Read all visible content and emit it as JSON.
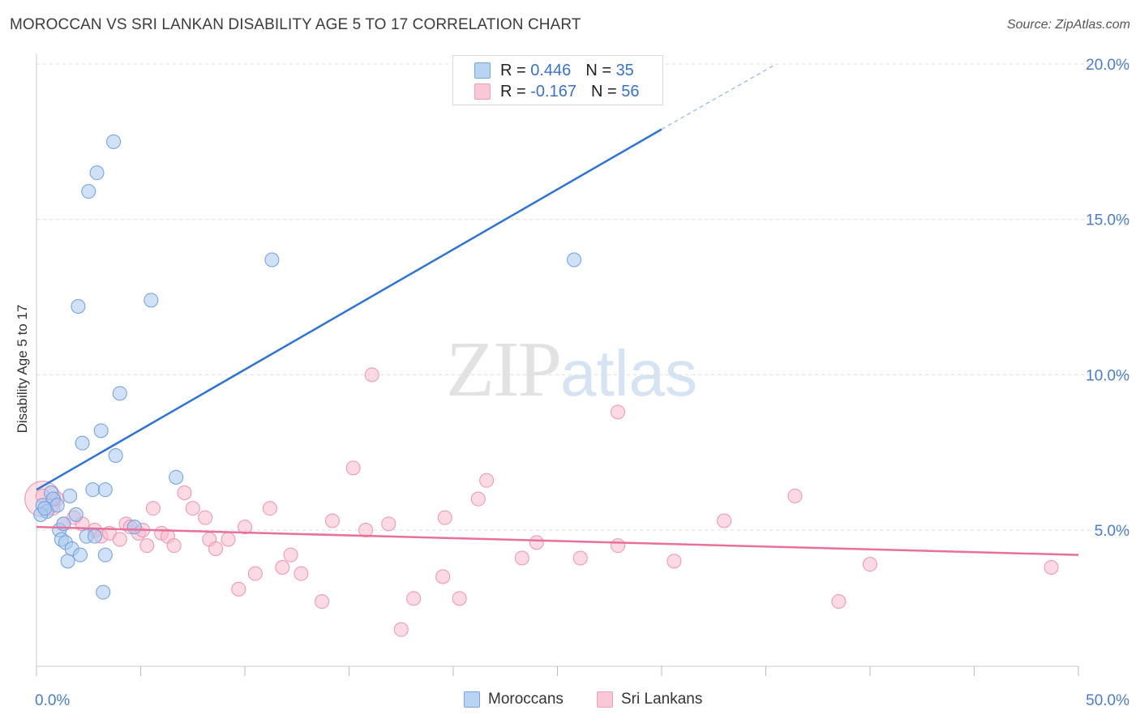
{
  "header": {
    "title": "MOROCCAN VS SRI LANKAN DISABILITY AGE 5 TO 17 CORRELATION CHART",
    "source": "Source: ZipAtlas.com"
  },
  "watermark": {
    "zip": "ZIP",
    "atlas": "atlas"
  },
  "legend": {
    "moroccans": {
      "r_label": "R =",
      "r_value": "0.446",
      "n_label": "N =",
      "n_value": "35"
    },
    "srilankans": {
      "r_label": "R =",
      "r_value": "-0.167",
      "n_label": "N =",
      "n_value": "56"
    }
  },
  "bottom_legend": {
    "moroccans": "Moroccans",
    "srilankans": "Sri Lankans"
  },
  "colors": {
    "moroccan_fill": "#a9c8f0",
    "moroccan_stroke": "#6f9fdc",
    "moroccan_line": "#2f74d0",
    "srilankan_fill": "#f7bccd",
    "srilankan_stroke": "#ec94b0",
    "srilankan_line": "#e8709a",
    "tick_label": "#4a7ec9",
    "grid": "#dddddd"
  },
  "chart_data": {
    "type": "scatter",
    "title": "MOROCCAN VS SRI LANKAN DISABILITY AGE 5 TO 17 CORRELATION CHART",
    "xlabel": "",
    "ylabel": "Disability Age 5 to 17",
    "xlim": [
      0,
      50
    ],
    "ylim": [
      0,
      21
    ],
    "x_tick_labels": [
      "0.0%",
      "50.0%"
    ],
    "y_ticks": [
      5,
      10,
      15,
      20
    ],
    "y_tick_labels": [
      "5.0%",
      "10.0%",
      "15.0%",
      "20.0%"
    ],
    "grid": true,
    "legend_position": "top-center",
    "series": [
      {
        "name": "Moroccans",
        "r": 0.446,
        "n": 35,
        "trend": {
          "x_start": 0,
          "y_start": 6.3,
          "x_end": 30,
          "y_end": 17.9,
          "dashed_to_x": 35.5,
          "dashed_to_y": 20.0
        },
        "points": [
          [
            0.3,
            5.8
          ],
          [
            0.5,
            5.6
          ],
          [
            0.7,
            6.2
          ],
          [
            0.8,
            6.0
          ],
          [
            1.0,
            5.8
          ],
          [
            1.1,
            5.0
          ],
          [
            1.2,
            4.7
          ],
          [
            1.3,
            5.2
          ],
          [
            1.4,
            4.6
          ],
          [
            1.5,
            4.0
          ],
          [
            1.6,
            6.1
          ],
          [
            1.7,
            4.4
          ],
          [
            1.9,
            5.5
          ],
          [
            2.0,
            12.2
          ],
          [
            2.1,
            4.2
          ],
          [
            2.2,
            7.8
          ],
          [
            2.4,
            4.8
          ],
          [
            2.5,
            15.9
          ],
          [
            2.7,
            6.3
          ],
          [
            2.8,
            4.8
          ],
          [
            2.9,
            16.5
          ],
          [
            3.1,
            8.2
          ],
          [
            3.2,
            3.0
          ],
          [
            3.3,
            4.2
          ],
          [
            3.3,
            6.3
          ],
          [
            3.7,
            17.5
          ],
          [
            3.8,
            7.4
          ],
          [
            4.0,
            9.4
          ],
          [
            4.7,
            5.1
          ],
          [
            5.5,
            12.4
          ],
          [
            6.7,
            6.7
          ],
          [
            11.3,
            13.7
          ],
          [
            0.2,
            5.5
          ],
          [
            0.4,
            5.7
          ],
          [
            25.8,
            13.7
          ]
        ]
      },
      {
        "name": "Sri Lankans",
        "r": -0.167,
        "n": 56,
        "trend": {
          "x_start": 0,
          "y_start": 5.1,
          "x_end": 50,
          "y_end": 4.2
        },
        "points": [
          [
            0.3,
            6.1
          ],
          [
            0.8,
            5.7
          ],
          [
            1.0,
            6.0
          ],
          [
            1.3,
            5.2
          ],
          [
            1.8,
            5.4
          ],
          [
            2.2,
            5.2
          ],
          [
            2.8,
            5.0
          ],
          [
            3.1,
            4.8
          ],
          [
            3.5,
            4.9
          ],
          [
            4.0,
            4.7
          ],
          [
            4.3,
            5.2
          ],
          [
            4.5,
            5.1
          ],
          [
            4.9,
            4.9
          ],
          [
            5.1,
            5.0
          ],
          [
            5.3,
            4.5
          ],
          [
            5.6,
            5.7
          ],
          [
            6.0,
            4.9
          ],
          [
            6.3,
            4.8
          ],
          [
            6.6,
            4.5
          ],
          [
            7.1,
            6.2
          ],
          [
            7.5,
            5.7
          ],
          [
            8.1,
            5.4
          ],
          [
            8.3,
            4.7
          ],
          [
            8.6,
            4.4
          ],
          [
            9.2,
            4.7
          ],
          [
            9.7,
            3.1
          ],
          [
            10.0,
            5.1
          ],
          [
            10.5,
            3.6
          ],
          [
            11.2,
            5.7
          ],
          [
            11.8,
            3.8
          ],
          [
            12.2,
            4.2
          ],
          [
            12.7,
            3.6
          ],
          [
            13.7,
            2.7
          ],
          [
            14.2,
            5.3
          ],
          [
            15.2,
            7.0
          ],
          [
            15.8,
            5.0
          ],
          [
            16.1,
            10.0
          ],
          [
            16.9,
            5.2
          ],
          [
            17.5,
            1.8
          ],
          [
            18.1,
            2.8
          ],
          [
            19.5,
            3.5
          ],
          [
            19.6,
            5.4
          ],
          [
            20.3,
            2.8
          ],
          [
            21.2,
            6.0
          ],
          [
            21.6,
            6.6
          ],
          [
            23.3,
            4.1
          ],
          [
            24.0,
            4.6
          ],
          [
            26.1,
            4.1
          ],
          [
            27.9,
            4.5
          ],
          [
            27.9,
            8.8
          ],
          [
            30.6,
            4.0
          ],
          [
            33.0,
            5.3
          ],
          [
            36.4,
            6.1
          ],
          [
            38.5,
            2.7
          ],
          [
            40.0,
            3.9
          ],
          [
            48.7,
            3.8
          ]
        ]
      }
    ]
  }
}
